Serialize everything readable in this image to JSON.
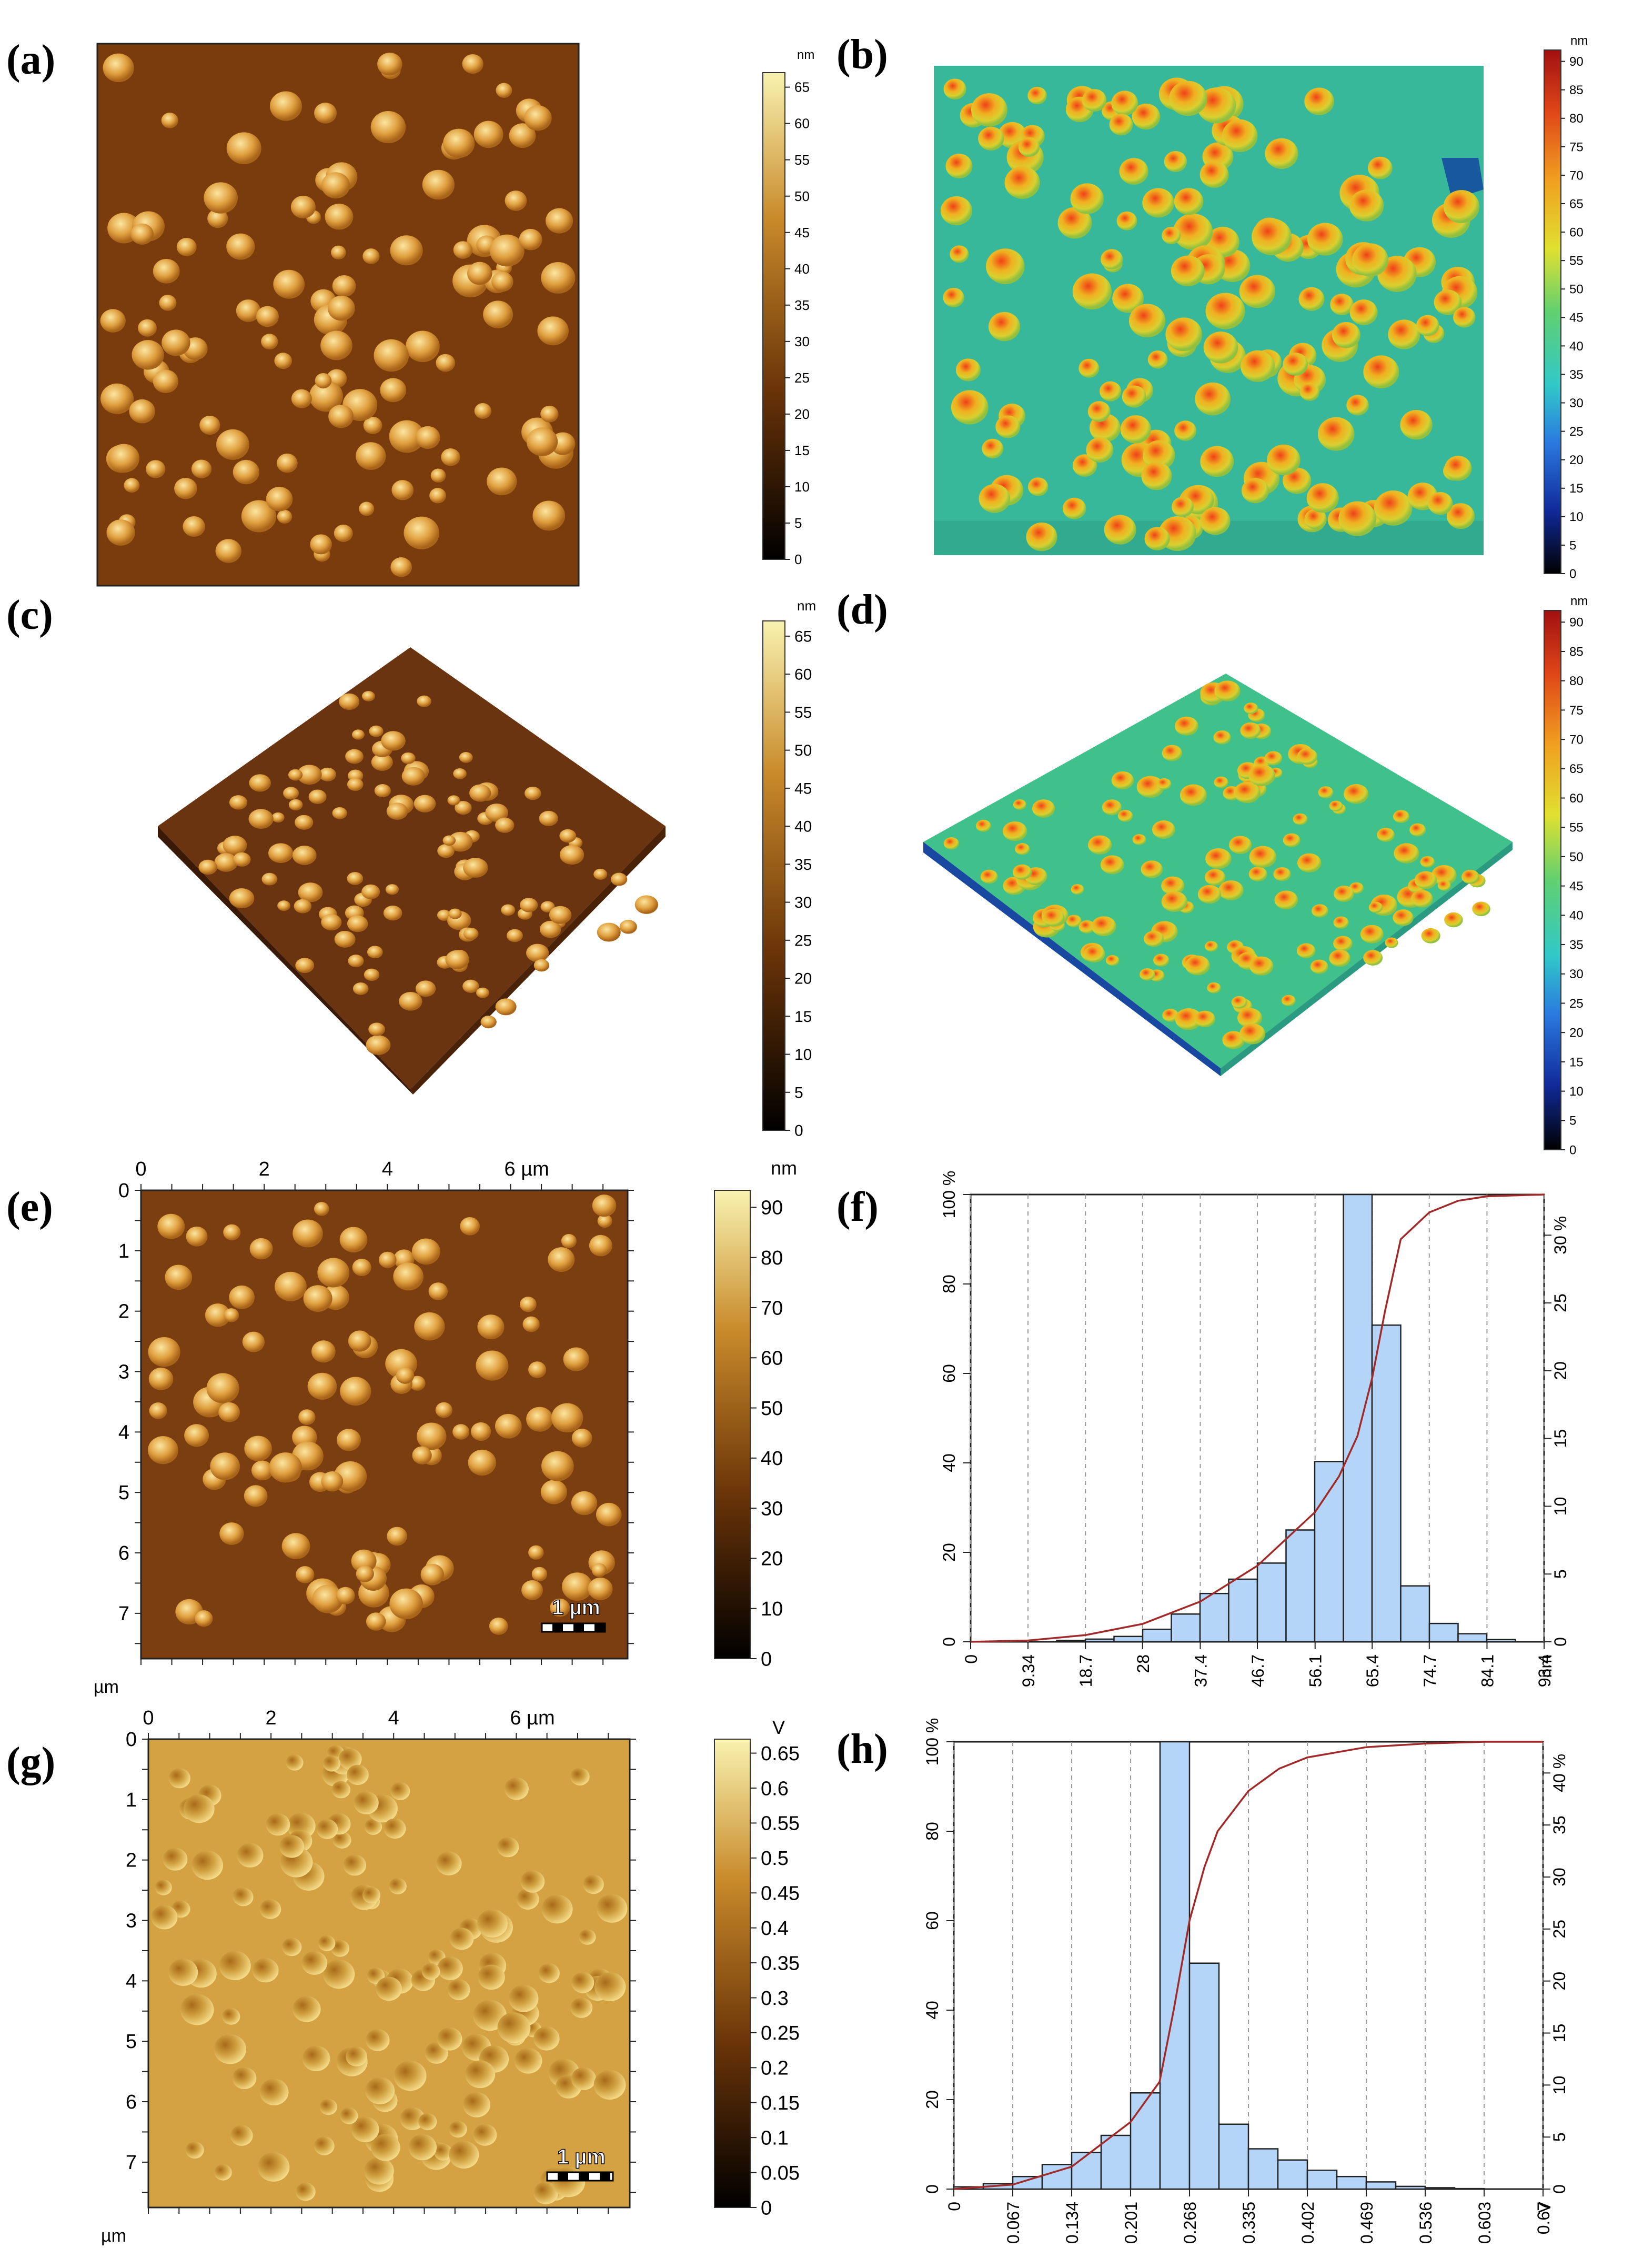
{
  "panels": {
    "a": {
      "label": "(a)"
    },
    "b": {
      "label": "(b)"
    },
    "c": {
      "label": "(c)"
    },
    "d": {
      "label": "(d)"
    },
    "e": {
      "label": "(e)"
    },
    "f": {
      "label": "(f)"
    },
    "g": {
      "label": "(g)"
    },
    "h": {
      "label": "(h)"
    }
  },
  "colorbars": {
    "a": {
      "unit": "nm",
      "ticks": [
        "0",
        "5",
        "10",
        "15",
        "20",
        "25",
        "30",
        "35",
        "40",
        "45",
        "50",
        "55",
        "60",
        "65"
      ],
      "max": 67
    },
    "b": {
      "unit": "nm",
      "ticks": [
        "0",
        "5",
        "10",
        "15",
        "20",
        "25",
        "30",
        "35",
        "40",
        "45",
        "50",
        "55",
        "60",
        "65",
        "70",
        "75",
        "80",
        "85",
        "90"
      ],
      "max": 92
    },
    "c": {
      "unit": "nm",
      "ticks": [
        "0",
        "5",
        "10",
        "15",
        "20",
        "25",
        "30",
        "35",
        "40",
        "45",
        "50",
        "55",
        "60",
        "65"
      ],
      "max": 67
    },
    "d": {
      "unit": "nm",
      "ticks": [
        "0",
        "5",
        "10",
        "15",
        "20",
        "25",
        "30",
        "35",
        "40",
        "45",
        "50",
        "55",
        "60",
        "65",
        "70",
        "75",
        "80",
        "85",
        "90"
      ],
      "max": 92
    },
    "e": {
      "unit": "nm",
      "ticks": [
        "0",
        "10",
        "20",
        "30",
        "40",
        "50",
        "60",
        "70",
        "80",
        "90"
      ],
      "max": 93.4
    },
    "g": {
      "unit": "V",
      "ticks": [
        "0",
        "0.05",
        "0.1",
        "0.15",
        "0.2",
        "0.25",
        "0.3",
        "0.35",
        "0.4",
        "0.45",
        "0.5",
        "0.55",
        "0.6",
        "0.65"
      ],
      "max": 0.67
    }
  },
  "afm_axes": {
    "top_ticks": [
      "0",
      "2",
      "4",
      "6 µm"
    ],
    "left_ticks": [
      "0",
      "1",
      "2",
      "3",
      "4",
      "5",
      "6",
      "7"
    ],
    "corner_unit": "µm",
    "scalebar": "1 µm"
  },
  "chart_data": [
    {
      "panel": "f",
      "type": "bar",
      "xlim": [
        0,
        93.4
      ],
      "x_ticks": [
        "0",
        "9.34",
        "18.7",
        "28",
        "37.4",
        "46.7",
        "56.1",
        "65.4",
        "74.7",
        "84.1",
        "93.4"
      ],
      "x_unit": "nm",
      "left_ticks": [
        "0",
        "20",
        "40",
        "60",
        "80",
        "100 %"
      ],
      "right_ticks": [
        "0",
        "5",
        "10",
        "15",
        "20",
        "25",
        "30 %"
      ],
      "ylim": [
        0,
        100
      ],
      "right_max": 33,
      "bin_edges": [
        14.01,
        18.68,
        23.35,
        28.02,
        32.69,
        37.36,
        42.03,
        46.7,
        51.37,
        56.04,
        60.71,
        65.38,
        70.05,
        74.72,
        79.39,
        84.06,
        88.73
      ],
      "values": [
        0.3,
        0.6,
        1.2,
        2.8,
        6.2,
        10.8,
        14.0,
        17.6,
        25.0,
        40.3,
        100,
        70.8,
        12.5,
        4.1,
        1.8,
        0.5
      ],
      "cumulative_x": [
        0,
        9.34,
        18.7,
        28,
        37.4,
        46.7,
        56.1,
        60,
        63,
        65.4,
        67.5,
        70.05,
        74.7,
        79.4,
        84.1,
        93.4
      ],
      "cumulative_y": [
        0,
        0.3,
        1.5,
        4,
        9,
        17,
        29,
        37,
        46,
        59,
        74,
        90,
        96,
        98.6,
        99.6,
        100
      ],
      "bar_color": "#b4d5f7",
      "line_color": "#a02a2a"
    },
    {
      "panel": "h",
      "type": "bar",
      "xlim": [
        0,
        0.67
      ],
      "x_ticks": [
        "0",
        "0.067",
        "0.134",
        "0.201",
        "0.268",
        "0.335",
        "0.402",
        "0.469",
        "0.536",
        "0.603",
        "0.67"
      ],
      "x_unit": "V",
      "left_ticks": [
        "0",
        "20",
        "40",
        "60",
        "80",
        "100 %"
      ],
      "right_ticks": [
        "0",
        "5",
        "10",
        "15",
        "20",
        "25",
        "30",
        "35",
        "40 %"
      ],
      "ylim": [
        0,
        100
      ],
      "right_max": 43,
      "bin_edges": [
        0.0,
        0.0335,
        0.067,
        0.1005,
        0.134,
        0.1675,
        0.201,
        0.2345,
        0.268,
        0.3015,
        0.335,
        0.3685,
        0.402,
        0.4355,
        0.469,
        0.5025,
        0.536,
        0.5695,
        0.603
      ],
      "values": [
        0.5,
        1.2,
        2.8,
        5.5,
        8.2,
        12.0,
        21.5,
        100,
        50.5,
        14.5,
        9.0,
        6.5,
        4.2,
        2.8,
        1.6,
        0.6,
        0.3,
        0.1
      ],
      "cumulative_x": [
        0,
        0.067,
        0.134,
        0.201,
        0.234,
        0.25,
        0.268,
        0.285,
        0.3,
        0.335,
        0.37,
        0.402,
        0.469,
        0.536,
        0.603,
        0.67
      ],
      "cumulative_y": [
        0,
        1,
        5,
        15,
        24,
        40,
        60,
        72,
        80,
        89,
        94,
        96.5,
        98.8,
        99.6,
        100,
        100
      ],
      "bar_color": "#b4d5f7",
      "line_color": "#a02a2a"
    }
  ]
}
